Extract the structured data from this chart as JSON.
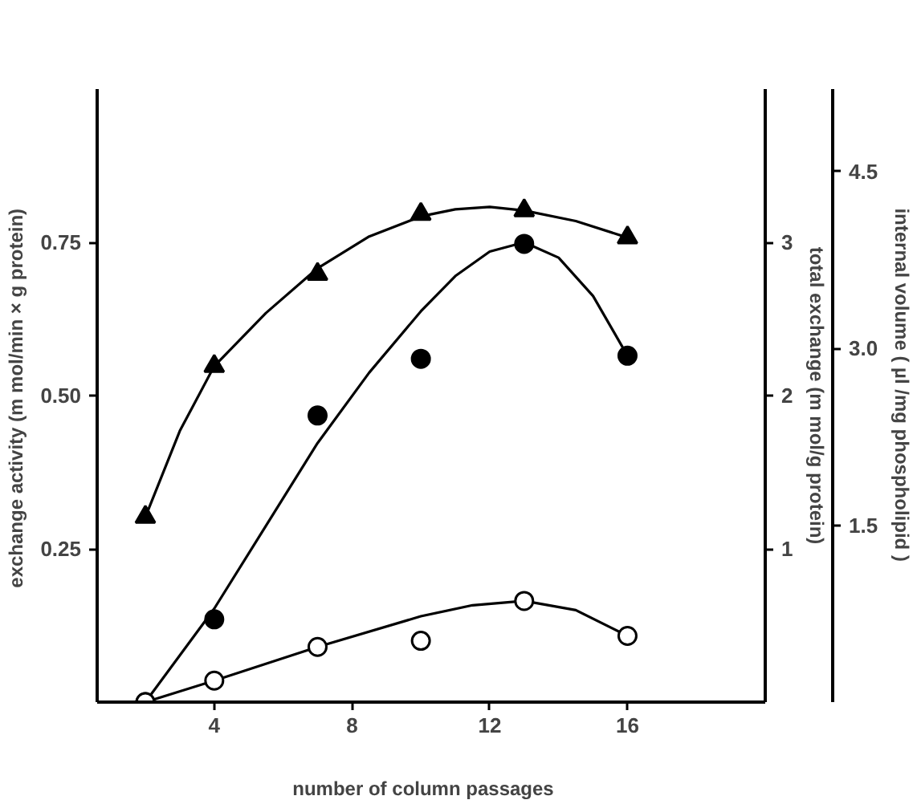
{
  "chart_data": {
    "type": "scatter",
    "xlabel": "number  of  column  passages",
    "ylabel": "exchange  activity (m mol/min × g protein)",
    "y2label": "total exchange (m mol/g protein)",
    "y3label": "internal  volume   ( µl /mg  phospholipid )",
    "xlim": [
      0.6,
      20
    ],
    "xticks": [
      4,
      8,
      12,
      16
    ],
    "ylim": [
      0,
      1.0
    ],
    "yticks": [
      {
        "value": 0.25,
        "label": "0.25"
      },
      {
        "value": 0.5,
        "label": "0.50"
      },
      {
        "value": 0.75,
        "label": "0.75"
      }
    ],
    "y2lim": [
      0,
      4.0
    ],
    "y2ticks": [
      1,
      2,
      3
    ],
    "y3lim": [
      0,
      5.2
    ],
    "y3ticks": [
      1.5,
      {
        "value": 3.0,
        "label": "3.0"
      },
      4.5
    ],
    "series": [
      {
        "axis": "y3",
        "marker": "triangle",
        "color": "#000000",
        "x": [
          2,
          4,
          7,
          10,
          13,
          16
        ],
        "values": [
          1.57,
          2.85,
          3.63,
          4.14,
          4.17,
          3.94
        ]
      },
      {
        "axis": "y2",
        "marker": "circle",
        "color": "#000000",
        "x": [
          2,
          4,
          7,
          10,
          13,
          16
        ],
        "values": [
          0,
          0.54,
          1.87,
          2.24,
          2.99,
          2.26
        ]
      },
      {
        "axis": "y",
        "marker": "circle",
        "color": "#ffffff",
        "x": [
          2,
          4,
          7,
          10,
          13,
          16
        ],
        "values": [
          0,
          0.035,
          0.09,
          0.1,
          0.165,
          0.108
        ]
      },
      {
        "type": "line",
        "axis": "y3",
        "color": "#000000",
        "x": [
          2,
          3,
          4,
          5.5,
          7,
          8.5,
          10,
          11,
          12,
          13,
          14.5,
          16
        ],
        "values": [
          1.57,
          2.3,
          2.85,
          3.3,
          3.68,
          3.95,
          4.12,
          4.18,
          4.2,
          4.17,
          4.08,
          3.94
        ]
      },
      {
        "type": "line",
        "axis": "y2",
        "color": "#000000",
        "x": [
          2,
          4,
          5.5,
          7,
          8.5,
          10,
          11,
          12,
          13,
          14,
          15,
          16
        ],
        "values": [
          0,
          0.61,
          1.15,
          1.69,
          2.15,
          2.55,
          2.78,
          2.94,
          3.0,
          2.9,
          2.65,
          2.26
        ]
      },
      {
        "type": "line",
        "axis": "y",
        "color": "#000000",
        "x": [
          2,
          4,
          7,
          10,
          11.5,
          13,
          14.5,
          16
        ],
        "values": [
          0,
          0.035,
          0.09,
          0.14,
          0.158,
          0.165,
          0.15,
          0.108
        ]
      }
    ]
  }
}
